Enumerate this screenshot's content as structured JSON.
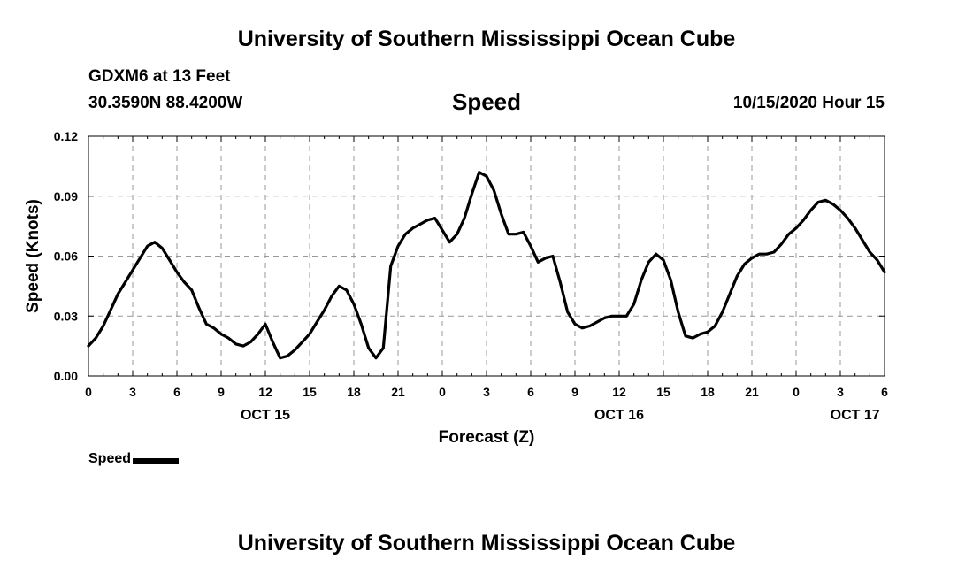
{
  "header": {
    "title": "University of Southern Mississippi Ocean Cube",
    "station": "GDXM6 at 13 Feet",
    "coords": "30.3590N 88.4200W",
    "variable": "Speed",
    "datetime": "10/15/2020 Hour 15"
  },
  "footer": {
    "title": "University of Southern Mississippi Ocean Cube"
  },
  "chart_data": {
    "type": "line",
    "title": "Speed",
    "xlabel": "Forecast (Z)",
    "ylabel": "Speed (Knots)",
    "xlim": [
      0,
      54
    ],
    "ylim": [
      0,
      0.12
    ],
    "grid": true,
    "line_color": "#000000",
    "x_ticks": [
      {
        "x": 0,
        "label": "0"
      },
      {
        "x": 3,
        "label": "3"
      },
      {
        "x": 6,
        "label": "6"
      },
      {
        "x": 9,
        "label": "9"
      },
      {
        "x": 12,
        "label": "12"
      },
      {
        "x": 15,
        "label": "15"
      },
      {
        "x": 18,
        "label": "18"
      },
      {
        "x": 21,
        "label": "21"
      },
      {
        "x": 24,
        "label": "0"
      },
      {
        "x": 27,
        "label": "3"
      },
      {
        "x": 30,
        "label": "6"
      },
      {
        "x": 33,
        "label": "9"
      },
      {
        "x": 36,
        "label": "12"
      },
      {
        "x": 39,
        "label": "15"
      },
      {
        "x": 42,
        "label": "18"
      },
      {
        "x": 45,
        "label": "21"
      },
      {
        "x": 48,
        "label": "0"
      },
      {
        "x": 51,
        "label": "3"
      },
      {
        "x": 54,
        "label": "6"
      }
    ],
    "y_ticks": [
      {
        "y": 0,
        "label": "0.00"
      },
      {
        "y": 0.03,
        "label": "0.03"
      },
      {
        "y": 0.06,
        "label": "0.06"
      },
      {
        "y": 0.09,
        "label": "0.09"
      },
      {
        "y": 0.12,
        "label": "0.12"
      }
    ],
    "date_labels": [
      {
        "x": 12,
        "label": "OCT 15"
      },
      {
        "x": 36,
        "label": "OCT 16"
      },
      {
        "x": 52,
        "label": "OCT 17"
      }
    ],
    "legend": {
      "label": "Speed",
      "position": "bottom-left"
    },
    "series": [
      {
        "name": "Speed",
        "x": [
          0,
          0.5,
          1,
          1.5,
          2,
          2.5,
          3,
          3.5,
          4,
          4.5,
          5,
          5.5,
          6,
          6.5,
          7,
          7.5,
          8,
          8.5,
          9,
          9.5,
          10,
          10.5,
          11,
          11.5,
          12,
          12.5,
          13,
          13.5,
          14,
          14.5,
          15,
          15.5,
          16,
          16.5,
          17,
          17.5,
          18,
          18.5,
          19,
          19.5,
          20,
          20.5,
          21,
          21.5,
          22,
          22.5,
          23,
          23.5,
          24,
          24.5,
          25,
          25.5,
          26,
          26.5,
          27,
          27.5,
          28,
          28.5,
          29,
          29.5,
          30,
          30.5,
          31,
          31.5,
          32,
          32.5,
          33,
          33.5,
          34,
          34.5,
          35,
          35.5,
          36,
          36.5,
          37,
          37.5,
          38,
          38.5,
          39,
          39.5,
          40,
          40.5,
          41,
          41.5,
          42,
          42.5,
          43,
          43.5,
          44,
          44.5,
          45,
          45.5,
          46,
          46.5,
          47,
          47.5,
          48,
          48.5,
          49,
          49.5,
          50,
          50.5,
          51,
          51.5,
          52,
          52.5,
          53,
          53.5,
          54
        ],
        "values": [
          0.015,
          0.019,
          0.025,
          0.033,
          0.041,
          0.047,
          0.053,
          0.059,
          0.065,
          0.067,
          0.064,
          0.058,
          0.052,
          0.047,
          0.043,
          0.034,
          0.026,
          0.024,
          0.021,
          0.019,
          0.016,
          0.015,
          0.017,
          0.021,
          0.026,
          0.017,
          0.009,
          0.01,
          0.013,
          0.017,
          0.021,
          0.027,
          0.033,
          0.04,
          0.045,
          0.043,
          0.036,
          0.026,
          0.014,
          0.009,
          0.014,
          0.055,
          0.065,
          0.071,
          0.074,
          0.076,
          0.078,
          0.079,
          0.073,
          0.067,
          0.071,
          0.079,
          0.091,
          0.102,
          0.1,
          0.093,
          0.081,
          0.071,
          0.071,
          0.072,
          0.065,
          0.057,
          0.059,
          0.06,
          0.047,
          0.032,
          0.026,
          0.024,
          0.025,
          0.027,
          0.029,
          0.03,
          0.03,
          0.03,
          0.036,
          0.048,
          0.057,
          0.061,
          0.058,
          0.048,
          0.032,
          0.02,
          0.019,
          0.021,
          0.022,
          0.025,
          0.032,
          0.041,
          0.05,
          0.056,
          0.059,
          0.061,
          0.061,
          0.062,
          0.066,
          0.071,
          0.074,
          0.078,
          0.083,
          0.087,
          0.088,
          0.086,
          0.083,
          0.079,
          0.074,
          0.068,
          0.062,
          0.058,
          0.052
        ]
      }
    ]
  }
}
